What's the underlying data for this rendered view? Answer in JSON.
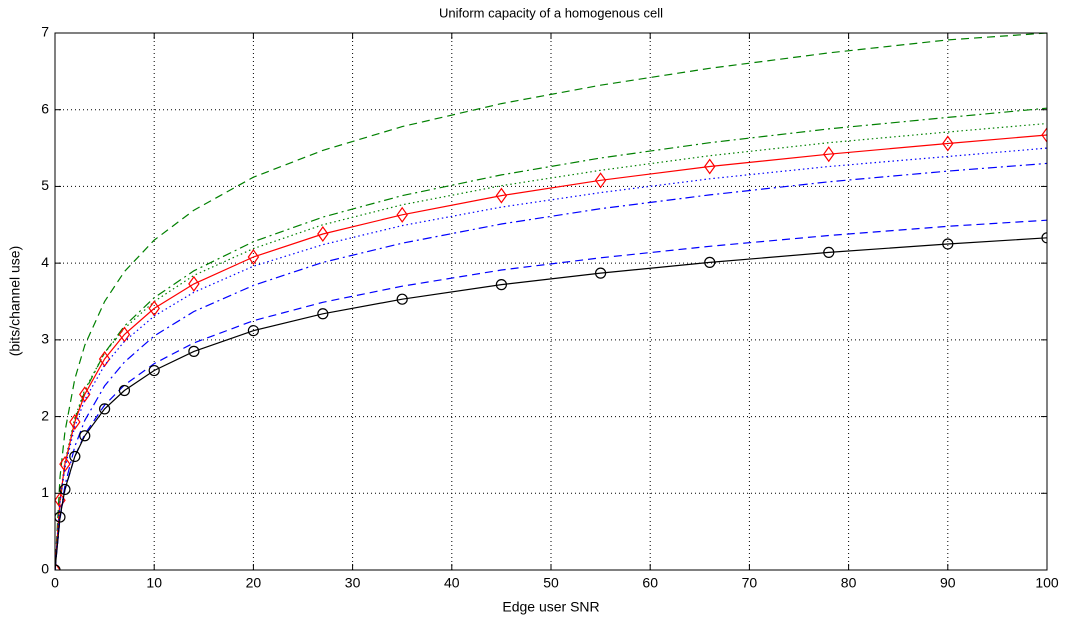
{
  "chart_data": {
    "type": "line",
    "title": "Uniform capacity of a homogenous cell",
    "x_label": "Edge user SNR",
    "y_label": "(bits/channel use)",
    "x": [
      0,
      0.5,
      1,
      2,
      3,
      5,
      7,
      10,
      14,
      20,
      27,
      35,
      45,
      55,
      66,
      78,
      90,
      100
    ],
    "series": [
      {
        "color": "#008000",
        "line_style": "dashed",
        "values": [
          0,
          1.21,
          1.8,
          2.49,
          2.93,
          3.5,
          3.89,
          4.3,
          4.69,
          5.12,
          5.47,
          5.78,
          6.08,
          6.32,
          6.54,
          6.74,
          6.91,
          7.0
        ]
      },
      {
        "color": "#008000",
        "line_style": "dashdot",
        "values": [
          0,
          0.88,
          1.36,
          1.95,
          2.33,
          2.83,
          3.18,
          3.55,
          3.9,
          4.28,
          4.6,
          4.88,
          5.15,
          5.37,
          5.57,
          5.75,
          5.9,
          6.02
        ]
      },
      {
        "color": "#008000",
        "line_style": "dotted",
        "values": [
          0,
          0.93,
          1.41,
          1.98,
          2.35,
          2.83,
          3.15,
          3.5,
          3.84,
          4.19,
          4.5,
          4.76,
          5.01,
          5.21,
          5.4,
          5.57,
          5.71,
          5.82
        ]
      },
      {
        "color": "#ff0000",
        "line_style": "solid",
        "marker": "diamond",
        "values": [
          0,
          0.91,
          1.38,
          1.93,
          2.29,
          2.75,
          3.07,
          3.41,
          3.73,
          4.08,
          4.38,
          4.63,
          4.88,
          5.08,
          5.26,
          5.42,
          5.56,
          5.67
        ]
      },
      {
        "color": "#0000ff",
        "line_style": "dotted",
        "values": [
          0,
          0.88,
          1.33,
          1.87,
          2.22,
          2.67,
          2.98,
          3.31,
          3.62,
          3.96,
          4.24,
          4.49,
          4.73,
          4.92,
          5.1,
          5.26,
          5.39,
          5.5
        ]
      },
      {
        "color": "#0000ff",
        "line_style": "dashdot",
        "values": [
          0,
          0.69,
          1.1,
          1.61,
          1.95,
          2.4,
          2.71,
          3.05,
          3.37,
          3.71,
          4.01,
          4.26,
          4.51,
          4.71,
          4.89,
          5.06,
          5.2,
          5.3
        ]
      },
      {
        "color": "#0000ff",
        "line_style": "dashed",
        "values": [
          0,
          0.67,
          1.04,
          1.48,
          1.77,
          2.15,
          2.41,
          2.69,
          2.96,
          3.25,
          3.49,
          3.7,
          3.91,
          4.07,
          4.22,
          4.36,
          4.48,
          4.56
        ]
      },
      {
        "color": "#000000",
        "line_style": "solid",
        "marker": "circle",
        "values": [
          0,
          0.69,
          1.05,
          1.48,
          1.75,
          2.1,
          2.34,
          2.6,
          2.85,
          3.12,
          3.34,
          3.53,
          3.72,
          3.87,
          4.01,
          4.14,
          4.25,
          4.33
        ]
      }
    ],
    "xlim": [
      0,
      100
    ],
    "xticks": [
      0,
      10,
      20,
      30,
      40,
      50,
      60,
      70,
      80,
      90,
      100
    ],
    "ylim": [
      0,
      7
    ],
    "yticks": [
      0,
      1,
      2,
      3,
      4,
      5,
      6,
      7
    ],
    "grid": true
  }
}
